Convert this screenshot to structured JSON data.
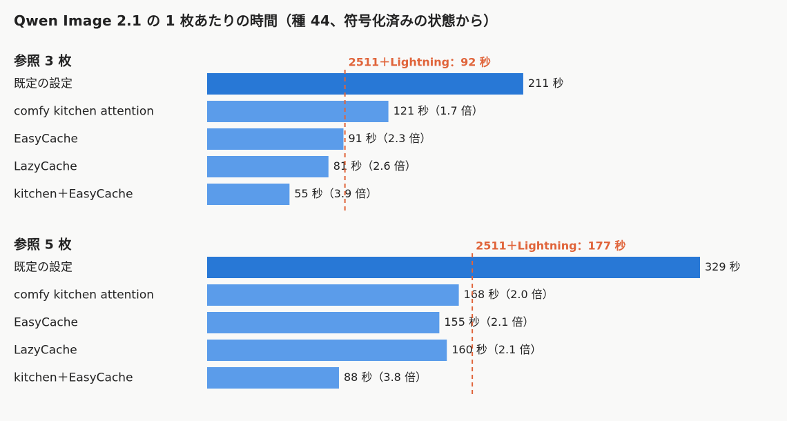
{
  "title": "Qwen Image 2.1 の 1 枚あたりの時間（種 44、符号化済みの状態から）",
  "colors": {
    "highlight_bar": "#2878d6",
    "bar": "#5b9cea",
    "reference_line": "#e0643a",
    "text": "#222222"
  },
  "chart_data": [
    {
      "type": "bar",
      "orientation": "horizontal",
      "group_title": "参照 3 枚",
      "categories": [
        "既定の設定",
        "comfy kitchen attention",
        "EasyCache",
        "LazyCache",
        "kitchen＋EasyCache"
      ],
      "values": [
        211,
        121,
        91,
        81,
        55
      ],
      "value_labels": [
        "211 秒",
        "121 秒（1.7 倍）",
        "91 秒（2.3 倍）",
        "81 秒（2.6 倍）",
        "55 秒（3.9 倍）"
      ],
      "highlight_index": 0,
      "reference_line": {
        "value": 92,
        "label": "2511＋Lightning：92 秒"
      },
      "xlim": [
        0,
        329
      ]
    },
    {
      "type": "bar",
      "orientation": "horizontal",
      "group_title": "参照 5 枚",
      "categories": [
        "既定の設定",
        "comfy kitchen attention",
        "EasyCache",
        "LazyCache",
        "kitchen＋EasyCache"
      ],
      "values": [
        329,
        168,
        155,
        160,
        88
      ],
      "value_labels": [
        "329 秒",
        "168 秒（2.0 倍）",
        "155 秒（2.1 倍）",
        "160 秒（2.1 倍）",
        "88 秒（3.8 倍）"
      ],
      "highlight_index": 0,
      "reference_line": {
        "value": 177,
        "label": "2511＋Lightning：177 秒"
      },
      "xlim": [
        0,
        329
      ]
    }
  ]
}
